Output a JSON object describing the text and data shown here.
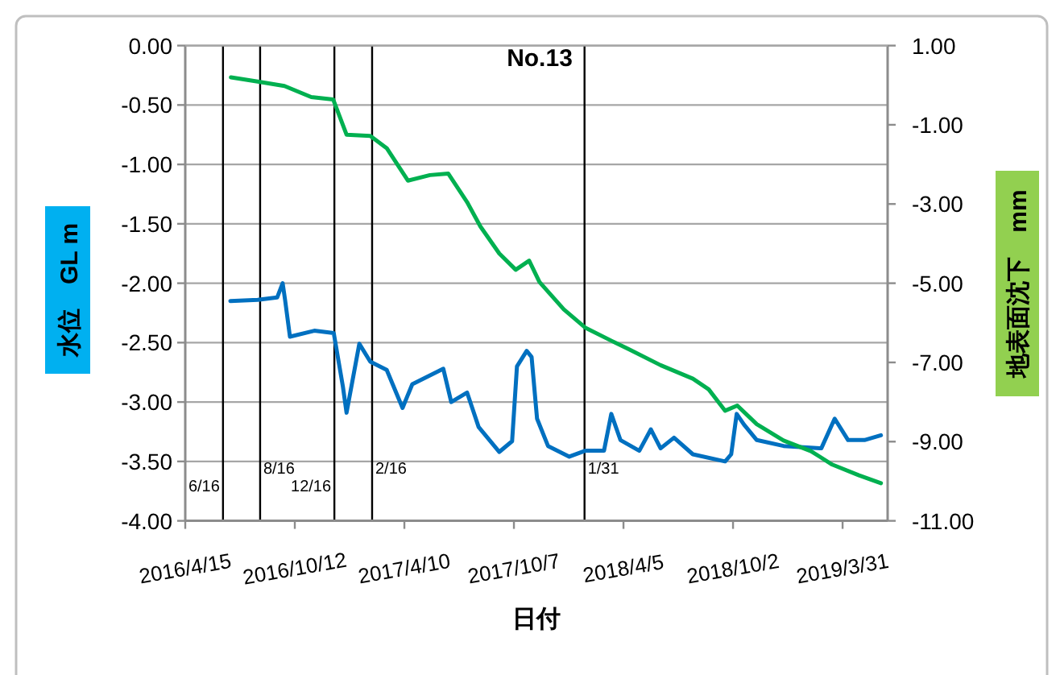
{
  "chart_data": {
    "type": "line",
    "title": "No.13",
    "xlabel": "日付",
    "ylabel": "水位　GL m",
    "y2label": "地表面沈下　mm",
    "xlim": [
      "2016-04-15",
      "2019-06-13"
    ],
    "xticks": [
      {
        "value": "2016-04-15",
        "label": "2016/4/15"
      },
      {
        "value": "2016-10-12",
        "label": "2016/10/12"
      },
      {
        "value": "2017-04-10",
        "label": "2017/4/10"
      },
      {
        "value": "2017-10-07",
        "label": "2017/10/7"
      },
      {
        "value": "2018-04-05",
        "label": "2018/4/5"
      },
      {
        "value": "2018-10-02",
        "label": "2018/10/2"
      },
      {
        "value": "2019-03-31",
        "label": "2019/3/31"
      }
    ],
    "ylim": [
      -4,
      0
    ],
    "yticks": [
      {
        "value": -4,
        "label": "-4.00"
      },
      {
        "value": -3.5,
        "label": "-3.50"
      },
      {
        "value": -3,
        "label": "-3.00"
      },
      {
        "value": -2.5,
        "label": "-2.50"
      },
      {
        "value": -2,
        "label": "-2.00"
      },
      {
        "value": -1.5,
        "label": "-1.50"
      },
      {
        "value": -1,
        "label": "-1.00"
      },
      {
        "value": -0.5,
        "label": "-0.50"
      },
      {
        "value": 0,
        "label": "0.00"
      }
    ],
    "y2lim": [
      -11,
      1
    ],
    "y2ticks": [
      {
        "value": -11,
        "label": "-11.00"
      },
      {
        "value": -9,
        "label": "-9.00"
      },
      {
        "value": -7,
        "label": "-7.00"
      },
      {
        "value": -5,
        "label": "-5.00"
      },
      {
        "value": -3,
        "label": "-3.00"
      },
      {
        "value": -1,
        "label": "-1.00"
      },
      {
        "value": 1,
        "label": "1.00"
      }
    ],
    "grid": "y",
    "ref_lines": [
      {
        "axis": "x",
        "value": "2016-06-16",
        "label": "6/16",
        "color": "#000000"
      },
      {
        "axis": "x",
        "value": "2016-08-16",
        "label": "8/16",
        "color": "#000000"
      },
      {
        "axis": "x",
        "value": "2016-12-16",
        "label": "12/16",
        "color": "#000000"
      },
      {
        "axis": "x",
        "value": "2017-02-16",
        "label": "2/16",
        "color": "#000000"
      },
      {
        "axis": "x",
        "value": "2018-01-31",
        "label": "1/31",
        "color": "#000000"
      }
    ],
    "series": [
      {
        "color": "#0070c0",
        "x": [
          "2016-06-28",
          "2016-08-12",
          "2016-09-13",
          "2016-09-22",
          "2016-09-26",
          "2016-10-04",
          "2016-11-13",
          "2016-12-15",
          "2016-12-30",
          "2017-01-05",
          "2017-01-26",
          "2017-02-13",
          "2017-03-12",
          "2017-04-07",
          "2017-04-23",
          "2017-06-13",
          "2017-06-26",
          "2017-07-22",
          "2017-08-10",
          "2017-09-13",
          "2017-10-04",
          "2017-10-12",
          "2017-10-28",
          "2017-11-05",
          "2017-11-14",
          "2017-12-02",
          "2018-01-06",
          "2018-02-01",
          "2018-03-04",
          "2018-03-16",
          "2018-03-31",
          "2018-05-01",
          "2018-05-20",
          "2018-06-05",
          "2018-06-27",
          "2018-07-28",
          "2018-09-19",
          "2018-09-29",
          "2018-10-08",
          "2018-10-20",
          "2018-11-10",
          "2018-12-24",
          "2019-02-24",
          "2019-03-18",
          "2019-04-09",
          "2019-05-06",
          "2019-06-02"
        ],
        "values": [
          -2.15,
          -2.14,
          -2.12,
          -2.0,
          -2.14,
          -2.45,
          -2.4,
          -2.42,
          -2.87,
          -3.09,
          -2.51,
          -2.66,
          -2.73,
          -3.05,
          -2.85,
          -2.72,
          -3.0,
          -2.92,
          -3.21,
          -3.42,
          -3.33,
          -2.7,
          -2.57,
          -2.62,
          -3.14,
          -3.37,
          -3.46,
          -3.41,
          -3.41,
          -3.1,
          -3.32,
          -3.41,
          -3.23,
          -3.39,
          -3.3,
          -3.44,
          -3.5,
          -3.44,
          -3.1,
          -3.19,
          -3.32,
          -3.37,
          -3.39,
          -3.14,
          -3.32,
          -3.32,
          -3.28
        ]
      },
      {
        "color": "#00b050",
        "axis": "y2",
        "x": [
          "2016-06-29",
          "2016-08-12",
          "2016-09-25",
          "2016-11-08",
          "2016-12-14",
          "2017-01-05",
          "2017-02-13",
          "2017-03-12",
          "2017-04-16",
          "2017-05-22",
          "2017-06-21",
          "2017-07-22",
          "2017-08-13",
          "2017-09-13",
          "2017-10-10",
          "2017-11-01",
          "2017-11-18",
          "2017-12-28",
          "2018-02-01",
          "2018-03-17",
          "2018-04-13",
          "2018-06-05",
          "2018-07-28",
          "2018-08-23",
          "2018-09-19",
          "2018-10-09",
          "2018-11-10",
          "2018-12-24",
          "2019-02-07",
          "2019-03-14",
          "2019-04-27",
          "2019-06-02"
        ],
        "values": [
          0.2,
          0.09,
          -0.02,
          -0.3,
          -0.36,
          -1.25,
          -1.28,
          -1.59,
          -2.41,
          -2.27,
          -2.23,
          -2.95,
          -3.57,
          -4.25,
          -4.66,
          -4.43,
          -4.97,
          -5.66,
          -6.12,
          -6.46,
          -6.66,
          -7.07,
          -7.41,
          -7.68,
          -8.22,
          -8.09,
          -8.56,
          -8.97,
          -9.24,
          -9.58,
          -9.85,
          -10.05
        ]
      }
    ]
  }
}
